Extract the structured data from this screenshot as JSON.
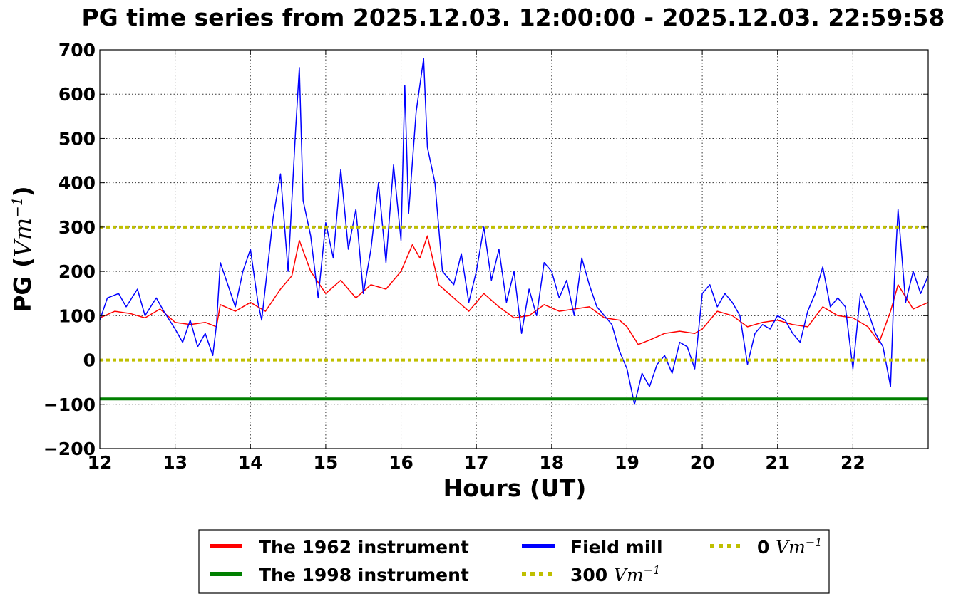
{
  "chart_data": {
    "type": "line",
    "title": "PG time series from 2025.12.03. 12:00:00 - 2025.12.03. 22:59:58",
    "xlabel": "Hours (UT)",
    "ylabel_prefix": "PG (",
    "ylabel_math": "Vm",
    "ylabel_exp": "−1",
    "ylabel_suffix": ")",
    "xlim": [
      12,
      23
    ],
    "ylim": [
      -200,
      700
    ],
    "grid": true,
    "legend_position": "below",
    "x_ticks": [
      12,
      13,
      14,
      15,
      16,
      17,
      18,
      19,
      20,
      21,
      22
    ],
    "x_tick_labels": [
      "12",
      "13",
      "14",
      "15",
      "16",
      "17",
      "18",
      "19",
      "20",
      "21",
      "22"
    ],
    "y_ticks": [
      -200,
      -100,
      0,
      100,
      200,
      300,
      400,
      500,
      600,
      700
    ],
    "y_tick_labels": [
      "−200",
      "−100",
      "0",
      "100",
      "200",
      "300",
      "400",
      "500",
      "600",
      "700"
    ],
    "series": [
      {
        "name": "The 1962 instrument",
        "color": "#ff0000",
        "style": "solid",
        "x": [
          12.0,
          12.2,
          12.4,
          12.6,
          12.8,
          13.0,
          13.2,
          13.4,
          13.55,
          13.6,
          13.8,
          14.0,
          14.2,
          14.4,
          14.55,
          14.65,
          14.8,
          15.0,
          15.2,
          15.4,
          15.6,
          15.8,
          16.0,
          16.15,
          16.25,
          16.35,
          16.5,
          16.7,
          16.9,
          17.1,
          17.3,
          17.5,
          17.7,
          17.9,
          18.1,
          18.3,
          18.5,
          18.7,
          18.9,
          19.0,
          19.15,
          19.3,
          19.5,
          19.7,
          19.9,
          20.0,
          20.2,
          20.4,
          20.6,
          20.8,
          21.0,
          21.2,
          21.4,
          21.6,
          21.8,
          22.0,
          22.2,
          22.35,
          22.5,
          22.6,
          22.8,
          23.0
        ],
        "y": [
          95,
          110,
          105,
          95,
          115,
          85,
          80,
          85,
          75,
          125,
          110,
          130,
          110,
          160,
          190,
          270,
          200,
          150,
          180,
          140,
          170,
          160,
          200,
          260,
          230,
          280,
          170,
          140,
          110,
          150,
          120,
          95,
          100,
          125,
          110,
          115,
          120,
          95,
          90,
          75,
          35,
          45,
          60,
          65,
          60,
          70,
          110,
          100,
          75,
          85,
          90,
          80,
          75,
          120,
          100,
          95,
          75,
          40,
          110,
          170,
          115,
          130
        ]
      },
      {
        "name": "The 1998 instrument",
        "color": "#008000",
        "style": "solid",
        "x": [
          12,
          23
        ],
        "y": [
          -88,
          -88
        ]
      },
      {
        "name": "Field mill",
        "color": "#0000ff",
        "style": "solid",
        "x": [
          12.0,
          12.1,
          12.25,
          12.35,
          12.5,
          12.6,
          12.75,
          12.85,
          13.0,
          13.1,
          13.2,
          13.3,
          13.4,
          13.5,
          13.55,
          13.6,
          13.7,
          13.8,
          13.9,
          14.0,
          14.1,
          14.15,
          14.3,
          14.4,
          14.5,
          14.6,
          14.65,
          14.7,
          14.8,
          14.9,
          15.0,
          15.1,
          15.2,
          15.3,
          15.4,
          15.5,
          15.6,
          15.7,
          15.8,
          15.9,
          16.0,
          16.05,
          16.1,
          16.2,
          16.3,
          16.35,
          16.45,
          16.55,
          16.7,
          16.8,
          16.9,
          17.0,
          17.1,
          17.2,
          17.3,
          17.4,
          17.5,
          17.6,
          17.7,
          17.8,
          17.9,
          18.0,
          18.1,
          18.2,
          18.3,
          18.4,
          18.5,
          18.6,
          18.7,
          18.8,
          18.9,
          19.0,
          19.1,
          19.2,
          19.3,
          19.4,
          19.5,
          19.6,
          19.7,
          19.8,
          19.9,
          20.0,
          20.1,
          20.2,
          20.3,
          20.4,
          20.5,
          20.6,
          20.7,
          20.8,
          20.9,
          21.0,
          21.1,
          21.2,
          21.3,
          21.4,
          21.5,
          21.6,
          21.7,
          21.8,
          21.9,
          22.0,
          22.1,
          22.2,
          22.3,
          22.4,
          22.5,
          22.55,
          22.6,
          22.7,
          22.8,
          22.9,
          23.0
        ],
        "y": [
          90,
          140,
          150,
          120,
          160,
          100,
          140,
          110,
          70,
          40,
          90,
          30,
          60,
          10,
          80,
          220,
          170,
          120,
          200,
          250,
          130,
          90,
          320,
          420,
          200,
          520,
          660,
          360,
          280,
          140,
          310,
          230,
          430,
          250,
          340,
          150,
          250,
          400,
          220,
          440,
          270,
          620,
          330,
          560,
          680,
          480,
          400,
          200,
          170,
          240,
          130,
          200,
          300,
          180,
          250,
          130,
          200,
          60,
          160,
          100,
          220,
          200,
          140,
          180,
          100,
          230,
          170,
          120,
          100,
          80,
          20,
          -20,
          -100,
          -30,
          -60,
          -10,
          10,
          -30,
          40,
          30,
          -20,
          150,
          170,
          120,
          150,
          130,
          100,
          -10,
          60,
          80,
          70,
          100,
          90,
          60,
          40,
          110,
          150,
          210,
          120,
          140,
          120,
          -20,
          150,
          110,
          60,
          30,
          -60,
          180,
          340,
          130,
          200,
          150,
          190
        ]
      },
      {
        "name": "300 Vm⁻¹",
        "color": "#bfbf00",
        "style": "dotted",
        "x": [
          12,
          23
        ],
        "y": [
          300,
          300
        ]
      },
      {
        "name": "0 Vm⁻¹",
        "color": "#bfbf00",
        "style": "dotted",
        "x": [
          12,
          23
        ],
        "y": [
          0,
          0
        ]
      }
    ],
    "legend": {
      "col1": [
        {
          "num_label": "The 1962 instrument",
          "color": "#ff0000",
          "style": "solid"
        },
        {
          "num_label": "The 1998 instrument",
          "color": "#008000",
          "style": "solid"
        }
      ],
      "col2": [
        {
          "num_label": "Field mill",
          "color": "#0000ff",
          "style": "solid"
        },
        {
          "num_label": "300 ",
          "math": "Vm",
          "exp": "−1",
          "color": "#bfbf00",
          "style": "dotted"
        }
      ],
      "col3": [
        {
          "num_label": "0 ",
          "math": "Vm",
          "exp": "−1",
          "color": "#bfbf00",
          "style": "dotted"
        }
      ]
    }
  }
}
